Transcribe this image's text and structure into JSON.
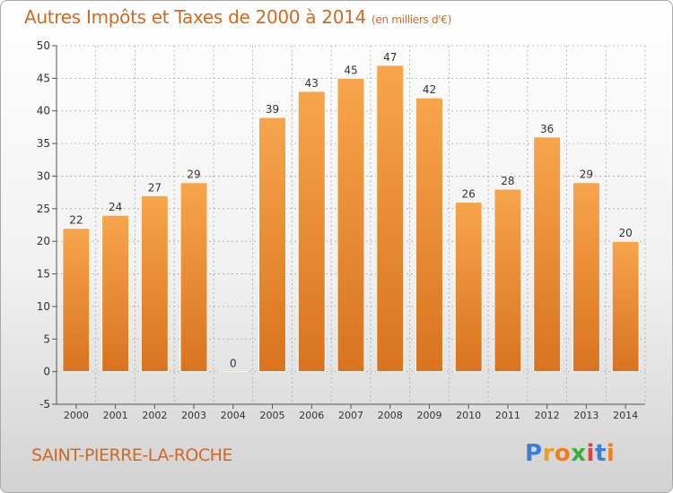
{
  "header": {
    "title": "Autres Impôts et Taxes de 2000 à 2014",
    "subtitle": "(en milliers d'€)"
  },
  "footer": {
    "commune": "SAINT-PIERRE-LA-ROCHE",
    "logo": [
      "P",
      "r",
      "o",
      "x",
      "i",
      "t",
      "i"
    ],
    "logo_colors": [
      "#3a7fd5",
      "#e8a020",
      "#ee7f1a",
      "#3ab03a",
      "#e04040",
      "#3a7fd5",
      "#ee7f1a"
    ]
  },
  "colors": {
    "bar_top": "#f7a54c",
    "bar_bottom": "#d9731f",
    "bar_outline": "#ffffff",
    "axis": "#555555",
    "grid": "#aaaaaa",
    "text": "#333333"
  },
  "chart_data": {
    "type": "bar",
    "title": "Autres Impôts et Taxes de 2000 à 2014",
    "subtitle": "(en milliers d'€)",
    "categories": [
      "2000",
      "2001",
      "2002",
      "2003",
      "2004",
      "2005",
      "2006",
      "2007",
      "2008",
      "2009",
      "2010",
      "2011",
      "2012",
      "2013",
      "2014"
    ],
    "values": [
      22,
      24,
      27,
      29,
      0,
      39,
      43,
      45,
      47,
      42,
      26,
      28,
      36,
      29,
      20
    ],
    "ylim": [
      -5,
      50
    ],
    "yticks": [
      -5,
      0,
      5,
      10,
      15,
      20,
      25,
      30,
      35,
      40,
      45,
      50
    ],
    "grid": true,
    "data_labels": true
  }
}
